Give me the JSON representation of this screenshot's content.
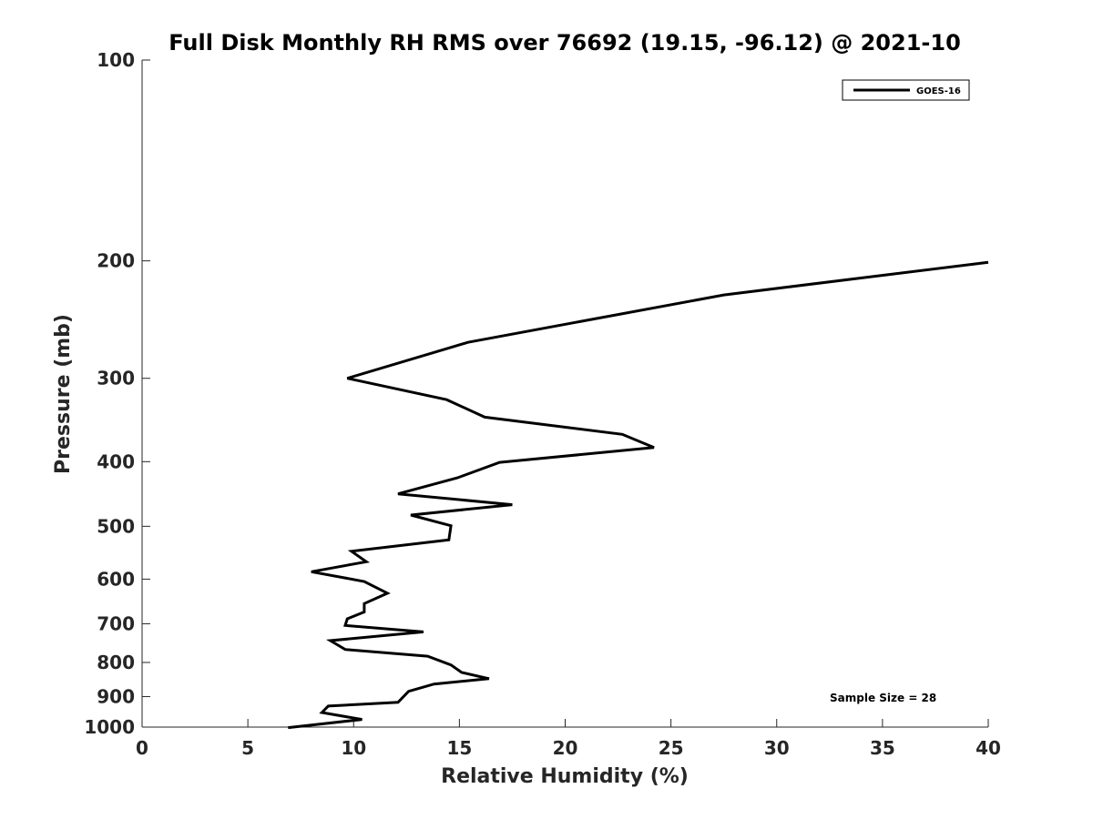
{
  "chart_data": {
    "type": "line",
    "title": "Full Disk Monthly RH RMS over 76692 (19.15, -96.12) @ 2021-10",
    "xlabel": "Relative Humidity (%)",
    "ylabel": "Pressure (mb)",
    "xlim": [
      0,
      40
    ],
    "ylim": [
      100,
      1000
    ],
    "yscale": "log",
    "yreversed": true,
    "xticks": [
      0,
      5,
      10,
      15,
      20,
      25,
      30,
      35,
      40
    ],
    "xtick_labels": [
      "0",
      "5",
      "10",
      "15",
      "20",
      "25",
      "30",
      "35",
      "40"
    ],
    "yticks": [
      100,
      200,
      300,
      400,
      500,
      600,
      700,
      800,
      900,
      1000
    ],
    "ytick_labels": [
      "100",
      "200",
      "300",
      "400",
      "500",
      "600",
      "700",
      "800",
      "900",
      "1000"
    ],
    "grid": false,
    "legend_position": "top-right",
    "series": [
      {
        "name": "GOES-16",
        "color": "#000000",
        "x": [
          40.0,
          27.5,
          15.4,
          9.7,
          14.4,
          16.2,
          22.7,
          24.2,
          16.9,
          14.9,
          12.1,
          17.5,
          12.7,
          14.6,
          14.5,
          9.9,
          10.6,
          8.0,
          10.5,
          11.6,
          10.5,
          10.5,
          9.7,
          9.6,
          13.3,
          8.9,
          9.6,
          13.5,
          14.6,
          15.1,
          16.4,
          13.8,
          12.6,
          12.1,
          8.8,
          8.5,
          10.4,
          6.9
        ],
        "y": [
          201,
          225,
          265,
          300,
          323,
          343,
          364,
          381,
          401,
          423,
          447,
          464,
          481,
          499,
          524,
          545,
          565,
          585,
          605,
          630,
          653,
          672,
          688,
          704,
          720,
          742,
          765,
          783,
          807,
          828,
          846,
          862,
          884,
          918,
          930,
          951,
          974,
          1002
        ]
      }
    ],
    "annotations": [
      "Sample Size = 28"
    ]
  }
}
